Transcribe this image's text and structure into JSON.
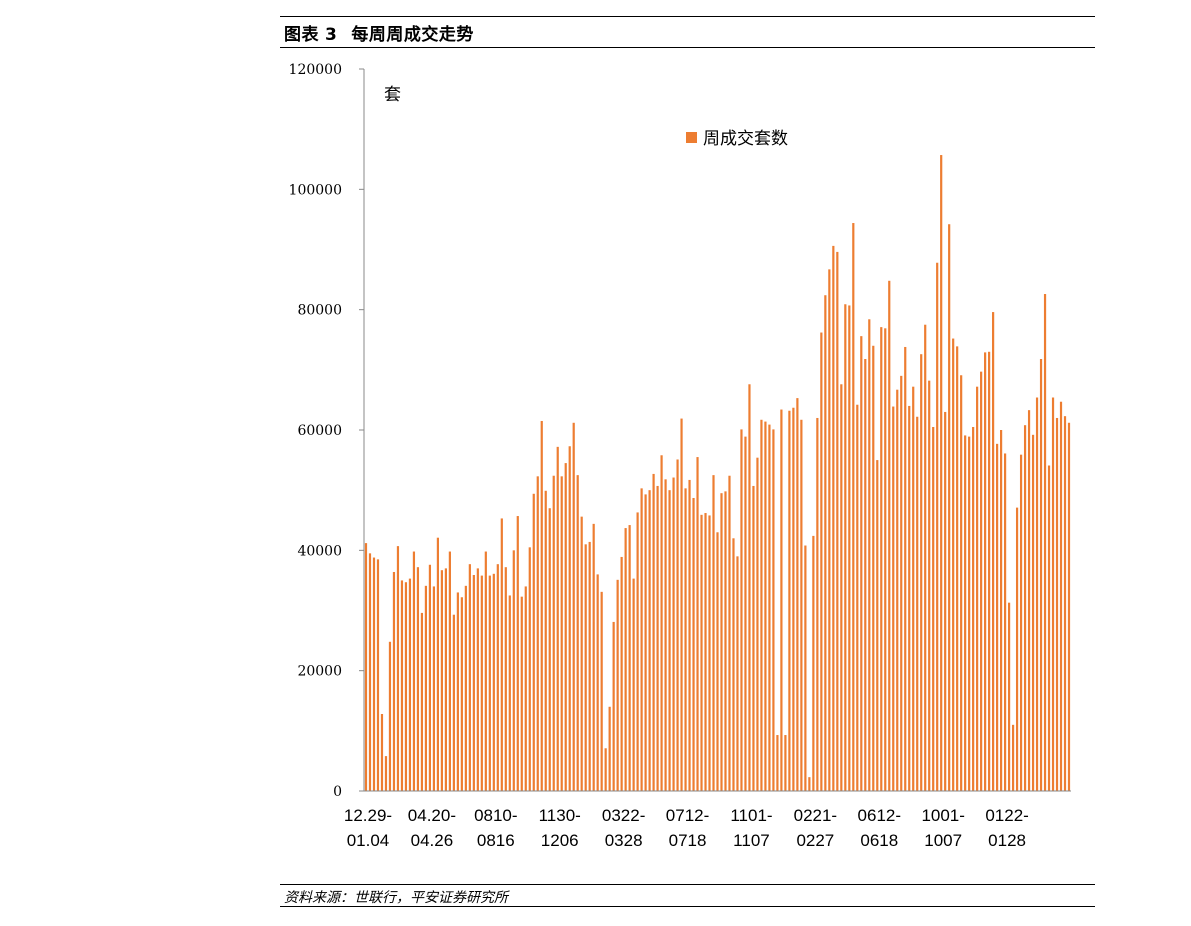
{
  "header": {
    "figure_label": "图表",
    "figure_number": "3",
    "title": "每周周成交走势"
  },
  "source": "资料来源：世联行，平安证券研究所",
  "chart_data": {
    "type": "bar",
    "unit_label": "套",
    "series": [
      {
        "name": "周成交套数",
        "color": "#ED7D31",
        "values": [
          41200,
          39500,
          38800,
          38500,
          12800,
          5800,
          24800,
          36400,
          40700,
          35000,
          34700,
          35300,
          39800,
          37200,
          29600,
          34100,
          37600,
          34000,
          42100,
          36700,
          37000,
          39800,
          29300,
          33000,
          32200,
          34100,
          37700,
          35900,
          37000,
          35800,
          39800,
          35800,
          36100,
          37700,
          45300,
          37200,
          32500,
          40000,
          45700,
          32300,
          34000,
          40500,
          49400,
          52300,
          61500,
          49900,
          47000,
          52400,
          57200,
          52300,
          54500,
          57300,
          61200,
          52500,
          45600,
          41000,
          41400,
          44400,
          36000,
          33100,
          7100,
          14000,
          28100,
          35100,
          38900,
          43700,
          44200,
          35300,
          46300,
          50300,
          49300,
          50000,
          52700,
          50700,
          55800,
          51800,
          50000,
          52100,
          55100,
          61900,
          50300,
          51700,
          48700,
          55500,
          45900,
          46200,
          45800,
          52500,
          43000,
          49500,
          49800,
          52400,
          42000,
          39000,
          60100,
          58900,
          67600,
          50700,
          55400,
          61700,
          61400,
          60900,
          60100,
          9300,
          63400,
          9300,
          63200,
          63700,
          65300,
          61700,
          40800,
          2300,
          42400,
          62000,
          76200,
          82400,
          86700,
          90600,
          89600,
          67600,
          80900,
          80700,
          94400,
          64200,
          75600,
          71800,
          78400,
          74000,
          55000,
          77100,
          76900,
          84800,
          63900,
          66700,
          69000,
          73800,
          64000,
          67200,
          62200,
          72600,
          77500,
          68200,
          60500,
          87800,
          105700,
          63000,
          94200,
          75200,
          73900,
          69100,
          59100,
          58900,
          60500,
          67200,
          69700,
          72900,
          73000,
          79600,
          57700,
          60000,
          56100,
          31300,
          11000,
          47100,
          55900,
          60800,
          63300,
          59200,
          65400,
          71800,
          82600,
          54100,
          65400,
          62000,
          64700,
          62300,
          61200
        ]
      }
    ],
    "x_tick_labels": [
      [
        "12.29-",
        "01.04"
      ],
      [
        "04.20-",
        "04.26"
      ],
      [
        "0810-",
        "0816"
      ],
      [
        "1130-",
        "1206"
      ],
      [
        "0322-",
        "0328"
      ],
      [
        "0712-",
        "0718"
      ],
      [
        "1101-",
        "1107"
      ],
      [
        "0221-",
        "0227"
      ],
      [
        "0612-",
        "0618"
      ],
      [
        "1001-",
        "1007"
      ],
      [
        "0122-",
        "0128"
      ]
    ],
    "x_tick_label_every": 16,
    "y_ticks": [
      0,
      20000,
      40000,
      60000,
      80000,
      100000,
      120000
    ],
    "ylim": [
      0,
      120000
    ],
    "legend_position": "top-center",
    "grid": false
  }
}
